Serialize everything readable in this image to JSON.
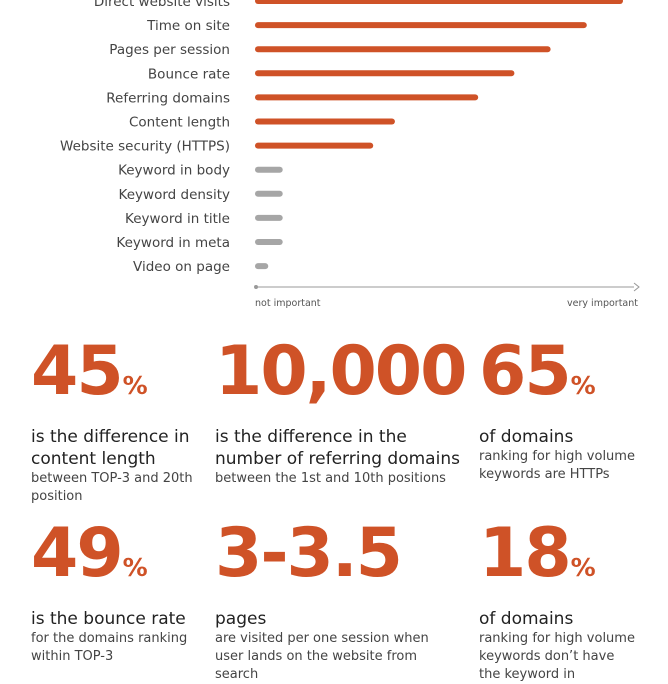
{
  "chart_data": {
    "type": "bar",
    "orientation": "horizontal",
    "categories": [
      "Direct website visits",
      "Time on site",
      "Pages per session",
      "Bounce rate",
      "Referring domains",
      "Content length",
      "Website security (HTTPS)",
      "Keyword in body",
      "Keyword density",
      "Keyword in title",
      "Keyword in meta",
      "Video on page"
    ],
    "values": [
      1.0,
      0.9,
      0.8,
      0.7,
      0.6,
      0.37,
      0.31,
      0.06,
      0.06,
      0.06,
      0.06,
      0.02
    ],
    "highlight_count": 7,
    "x_min_label": "not important",
    "x_max_label": "very important",
    "xlim": [
      0,
      1
    ],
    "colors": {
      "high": "#cf5227",
      "low": "#a6a6a6",
      "axis": "#999999"
    }
  },
  "stats": [
    {
      "number": "45",
      "suffix": "%",
      "headline": "is the difference in content length",
      "detail": "between TOP-3 and 20th position"
    },
    {
      "number": "10,000",
      "suffix": "",
      "headline": "is the difference in the number of referring domains",
      "detail": "between the 1st and 10th positions"
    },
    {
      "number": "65",
      "suffix": "%",
      "headline": "of domains",
      "detail": "ranking for high volume keywords are HTTPs"
    },
    {
      "number": "49",
      "suffix": "%",
      "headline": "is the bounce rate",
      "detail": "for the domains ranking within TOP-3"
    },
    {
      "number": "3-3.5",
      "suffix": "",
      "headline": "pages",
      "detail": "are visited per one session when user lands on the website from search"
    },
    {
      "number": "18",
      "suffix": "%",
      "headline": "of domains",
      "detail": "ranking for high volume keywords don’t have the keyword in"
    }
  ]
}
